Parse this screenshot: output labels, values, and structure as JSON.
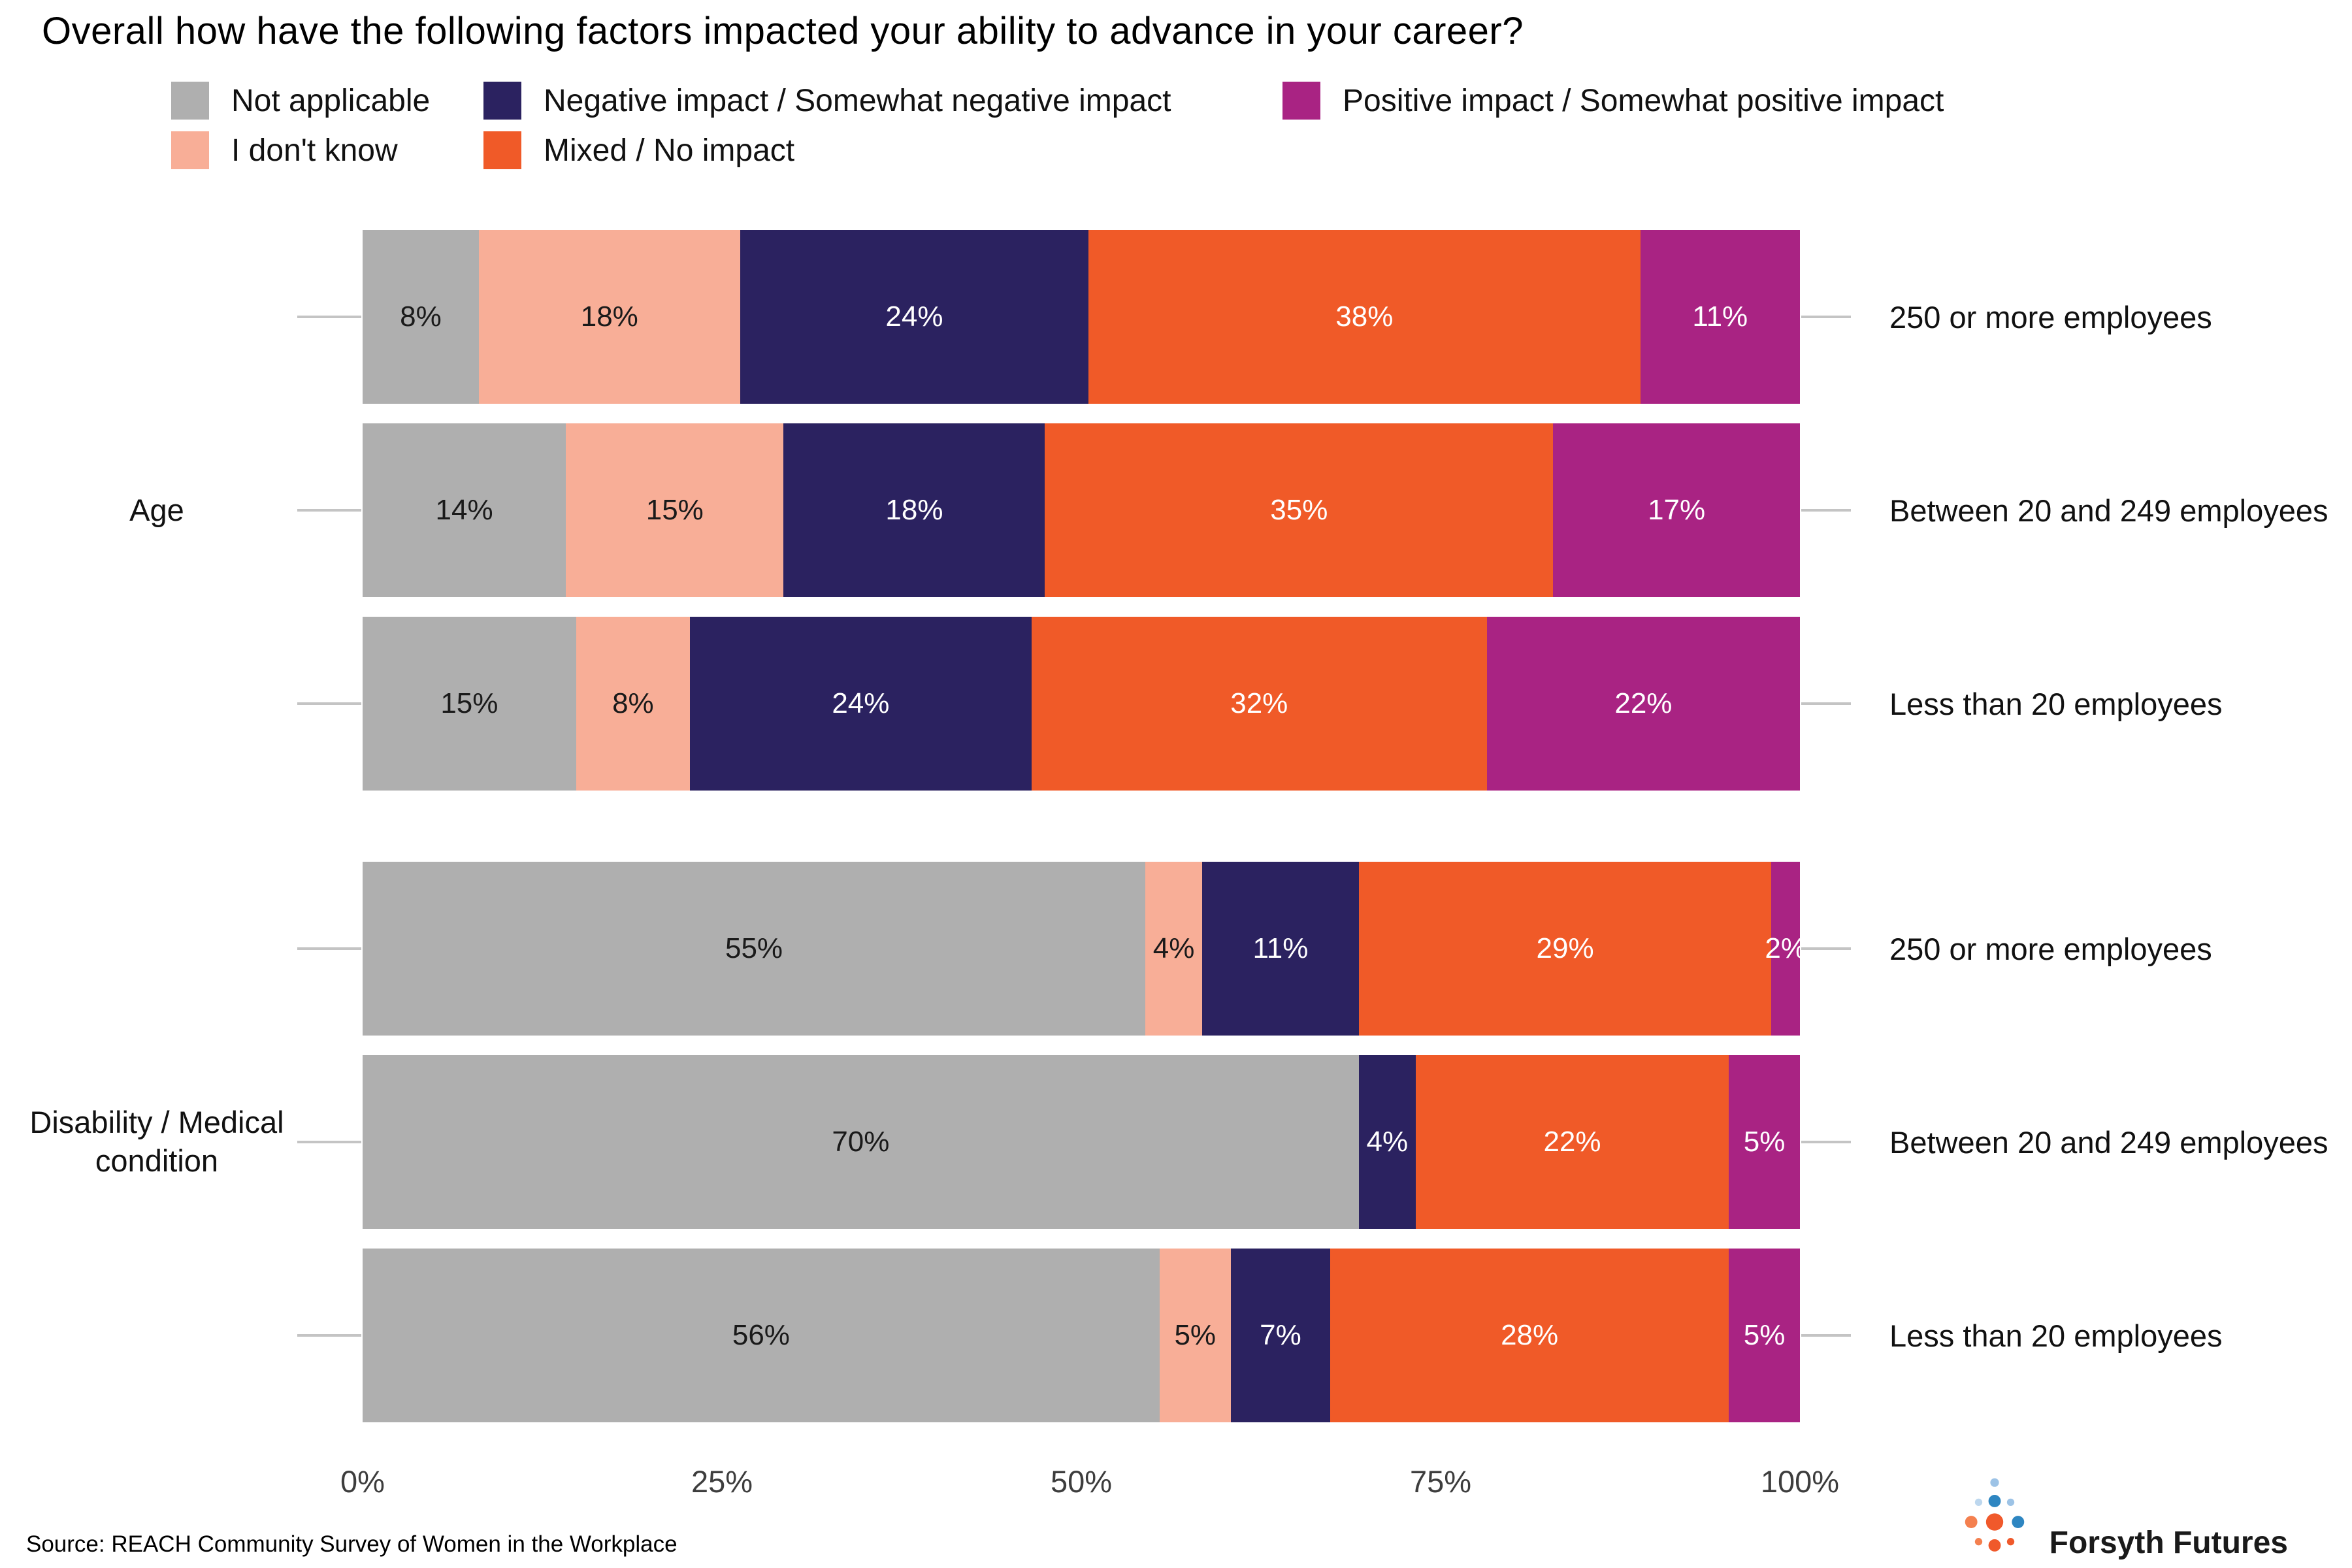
{
  "title": "Overall how have the following factors impacted your ability to advance in your career?",
  "legend": {
    "items": [
      {
        "label": "Not applicable",
        "color": "#AFAFAF",
        "text_color": "#1A1A1A"
      },
      {
        "label": "I don't know",
        "color": "#F8AE97",
        "text_color": "#1A1A1A"
      },
      {
        "label": "Negative impact / Somewhat negative impact",
        "color": "#2B2260",
        "text_color": "#FFFFFF"
      },
      {
        "label": "Mixed / No impact",
        "color": "#F05A28",
        "text_color": "#FFFFFF"
      },
      {
        "label": "Positive impact / Somewhat positive impact",
        "color": "#A92383",
        "text_color": "#FFFFFF"
      }
    ]
  },
  "chart_data": {
    "type": "bar",
    "orientation": "horizontal",
    "stacked": true,
    "unit": "%",
    "x_axis": {
      "range": [
        0,
        100
      ],
      "ticks": [
        {
          "label": "0%",
          "value": 0
        },
        {
          "label": "25%",
          "value": 25
        },
        {
          "label": "50%",
          "value": 50
        },
        {
          "label": "75%",
          "value": 75
        },
        {
          "label": "100%",
          "value": 100
        }
      ]
    },
    "series_names": [
      "Not applicable",
      "I don't know",
      "Negative impact / Somewhat negative impact",
      "Mixed / No impact",
      "Positive impact / Somewhat positive impact"
    ],
    "groups": [
      {
        "label": "Age",
        "bars": [
          {
            "category": "250 or more employees",
            "values": [
              8,
              18,
              24,
              38,
              11
            ]
          },
          {
            "category": "Between 20 and 249 employees",
            "values": [
              14,
              15,
              18,
              35,
              17
            ]
          },
          {
            "category": "Less than 20 employees",
            "values": [
              15,
              8,
              24,
              32,
              22
            ]
          }
        ]
      },
      {
        "label": "Disability / Medical condition",
        "bars": [
          {
            "category": "250 or more employees",
            "values": [
              55,
              4,
              11,
              29,
              2
            ]
          },
          {
            "category": "Between 20 and 249 employees",
            "values": [
              70,
              0,
              4,
              22,
              5
            ]
          },
          {
            "category": "Less than 20 employees",
            "values": [
              56,
              5,
              7,
              28,
              5
            ]
          }
        ]
      }
    ]
  },
  "source": "Source: REACH Community Survey of Women in the Workplace",
  "logo": {
    "text": "Forsyth Futures",
    "icon": "forsyth-futures-dots-icon",
    "colors": {
      "orange": "#F0592B",
      "blue": "#2E86C1",
      "light_blue": "#9DC3E6"
    }
  }
}
